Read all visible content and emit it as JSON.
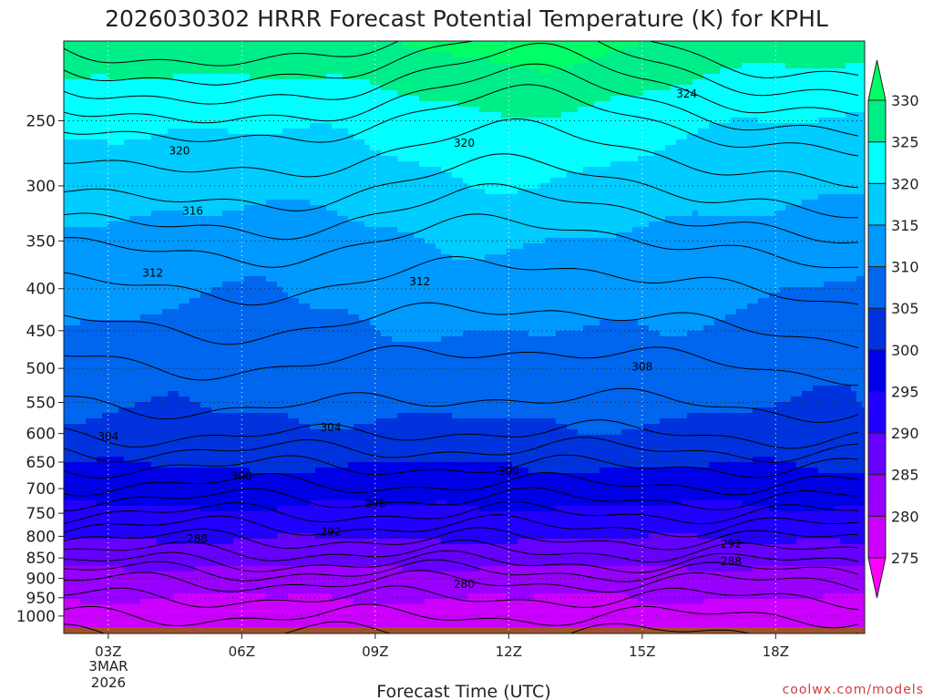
{
  "chart_data": {
    "type": "heatmap",
    "title": "2026030302 HRRR Forecast Potential Temperature (K) for KPHL",
    "xlabel": "Forecast Time (UTC)",
    "ylabel": "",
    "credit": "coolwx.com/models",
    "x_hours": [
      2,
      20
    ],
    "x_ticks": [
      {
        "hour": 3,
        "label": "03Z"
      },
      {
        "hour": 6,
        "label": "06Z"
      },
      {
        "hour": 9,
        "label": "09Z"
      },
      {
        "hour": 12,
        "label": "12Z"
      },
      {
        "hour": 15,
        "label": "15Z"
      },
      {
        "hour": 18,
        "label": "18Z"
      }
    ],
    "date_label": [
      "3MAR",
      "2026"
    ],
    "y_scale": "log-pressure",
    "y_range_hpa": [
      1050,
      200
    ],
    "y_ticks": [
      250,
      300,
      350,
      400,
      450,
      500,
      550,
      600,
      650,
      700,
      750,
      800,
      850,
      900,
      950,
      1000
    ],
    "grid": true,
    "colorbar": {
      "levels": [
        275,
        280,
        285,
        290,
        295,
        300,
        305,
        310,
        315,
        320,
        325,
        330
      ],
      "colors": [
        "#ff00ff",
        "#cc00ff",
        "#9900ff",
        "#6600ff",
        "#2200ff",
        "#0000e6",
        "#0033dd",
        "#0066ee",
        "#0099ff",
        "#00ccff",
        "#00ffff",
        "#00ee88",
        "#00ff66"
      ]
    },
    "contour_step": 2,
    "theta_profile": [
      {
        "p": 1050,
        "t": 276
      },
      {
        "p": 1000,
        "t": 278
      },
      {
        "p": 950,
        "t": 280
      },
      {
        "p": 900,
        "t": 282.5
      },
      {
        "p": 850,
        "t": 287
      },
      {
        "p": 800,
        "t": 290.5
      },
      {
        "p": 750,
        "t": 294
      },
      {
        "p": 700,
        "t": 297.5
      },
      {
        "p": 650,
        "t": 300.5
      },
      {
        "p": 600,
        "t": 304
      },
      {
        "p": 550,
        "t": 306
      },
      {
        "p": 500,
        "t": 307.5
      },
      {
        "p": 450,
        "t": 309.5
      },
      {
        "p": 400,
        "t": 311.5
      },
      {
        "p": 350,
        "t": 314
      },
      {
        "p": 300,
        "t": 318
      },
      {
        "p": 250,
        "t": 322
      },
      {
        "p": 200,
        "t": 330
      }
    ],
    "contour_labels": [
      {
        "value": "324",
        "hour": 16.0,
        "p": 232
      },
      {
        "value": "320",
        "hour": 4.6,
        "p": 272
      },
      {
        "value": "320",
        "hour": 11.0,
        "p": 266
      },
      {
        "value": "316",
        "hour": 4.9,
        "p": 322
      },
      {
        "value": "312",
        "hour": 4.0,
        "p": 383
      },
      {
        "value": "312",
        "hour": 10.0,
        "p": 392
      },
      {
        "value": "308",
        "hour": 15.0,
        "p": 498
      },
      {
        "value": "304",
        "hour": 3.0,
        "p": 605
      },
      {
        "value": "304",
        "hour": 8.0,
        "p": 590
      },
      {
        "value": "300",
        "hour": 6.0,
        "p": 676
      },
      {
        "value": "300",
        "hour": 12.0,
        "p": 667
      },
      {
        "value": "296",
        "hour": 9.0,
        "p": 730
      },
      {
        "value": "292",
        "hour": 8.0,
        "p": 790
      },
      {
        "value": "292",
        "hour": 17.0,
        "p": 818
      },
      {
        "value": "288",
        "hour": 5.0,
        "p": 805
      },
      {
        "value": "288",
        "hour": 17.0,
        "p": 858
      },
      {
        "value": "280",
        "hour": 11.0,
        "p": 915
      }
    ]
  }
}
